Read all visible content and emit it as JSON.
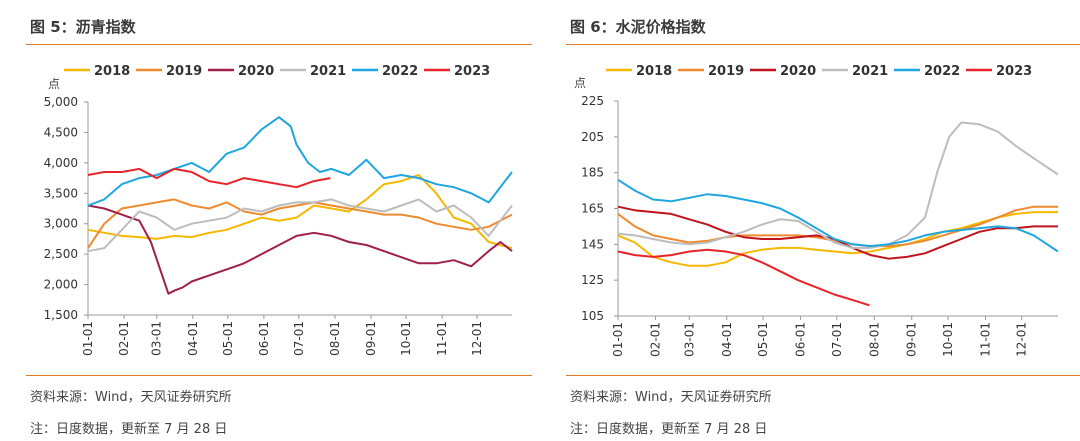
{
  "panels": [
    {
      "title": "图 5：沥青指数",
      "source": "资料来源：Wind，天风证券研究所",
      "note": "注：日度数据，更新至 7 月 28 日"
    },
    {
      "title": "图 6：水泥价格指数",
      "source": "资料来源：Wind，天风证券研究所",
      "note": "注：日度数据，更新至 7 月 28 日"
    }
  ],
  "chart_data": [
    {
      "type": "line",
      "title": "",
      "ylabel": "点",
      "xlabel": "",
      "ylim": [
        1500,
        5000
      ],
      "yticks": [
        1500,
        2000,
        2500,
        3000,
        3500,
        4000,
        4500,
        5000
      ],
      "ytick_labels": [
        "1,500",
        "2,000",
        "2,500",
        "3,000",
        "3,500",
        "4,000",
        "4,500",
        "5,000"
      ],
      "xticks": [
        "01-01",
        "02-01",
        "03-01",
        "04-01",
        "05-01",
        "06-01",
        "07-01",
        "08-01",
        "09-01",
        "10-01",
        "11-01",
        "12-01"
      ],
      "legend_position": "top",
      "grid": false,
      "series": [
        {
          "name": "2018",
          "color": "#f5b800",
          "x": [
            1,
            15,
            30,
            45,
            60,
            75,
            90,
            105,
            120,
            135,
            150,
            165,
            180,
            195,
            210,
            225,
            240,
            255,
            270,
            285,
            300,
            315,
            330,
            345,
            365
          ],
          "values": [
            2900,
            2850,
            2800,
            2780,
            2750,
            2800,
            2780,
            2850,
            2900,
            3000,
            3100,
            3050,
            3100,
            3300,
            3250,
            3200,
            3400,
            3650,
            3700,
            3800,
            3500,
            3100,
            3000,
            2700,
            2600
          ]
        },
        {
          "name": "2019",
          "color": "#ee8a30",
          "x": [
            1,
            15,
            30,
            45,
            60,
            75,
            90,
            105,
            120,
            135,
            150,
            165,
            180,
            195,
            210,
            225,
            240,
            255,
            270,
            285,
            300,
            315,
            330,
            345,
            365
          ],
          "values": [
            2600,
            3000,
            3250,
            3300,
            3350,
            3400,
            3300,
            3250,
            3350,
            3200,
            3150,
            3250,
            3300,
            3350,
            3300,
            3250,
            3200,
            3150,
            3150,
            3100,
            3000,
            2950,
            2900,
            2950,
            3150
          ]
        },
        {
          "name": "2020",
          "color": "#a0204a",
          "x": [
            1,
            15,
            30,
            45,
            55,
            62,
            70,
            75,
            82,
            90,
            105,
            120,
            135,
            150,
            165,
            180,
            195,
            210,
            225,
            240,
            255,
            270,
            285,
            300,
            315,
            330,
            345,
            355,
            365
          ],
          "values": [
            3300,
            3250,
            3150,
            3050,
            2700,
            2300,
            1850,
            1900,
            1950,
            2050,
            2150,
            2250,
            2350,
            2500,
            2650,
            2800,
            2850,
            2800,
            2700,
            2650,
            2550,
            2450,
            2350,
            2350,
            2400,
            2300,
            2550,
            2700,
            2550
          ]
        },
        {
          "name": "2021",
          "color": "#bdbdbd",
          "x": [
            1,
            15,
            30,
            45,
            60,
            75,
            90,
            105,
            120,
            135,
            150,
            165,
            180,
            195,
            210,
            225,
            240,
            255,
            270,
            285,
            300,
            315,
            330,
            345,
            365
          ],
          "values": [
            2550,
            2600,
            2900,
            3200,
            3100,
            2900,
            3000,
            3050,
            3100,
            3250,
            3200,
            3300,
            3350,
            3350,
            3400,
            3300,
            3250,
            3200,
            3300,
            3400,
            3200,
            3300,
            3100,
            2800,
            3300
          ]
        },
        {
          "name": "2022",
          "color": "#1ea6e0",
          "x": [
            1,
            15,
            30,
            45,
            60,
            75,
            90,
            105,
            120,
            135,
            150,
            165,
            175,
            180,
            190,
            200,
            210,
            225,
            240,
            255,
            270,
            285,
            300,
            315,
            330,
            345,
            365
          ],
          "values": [
            3300,
            3400,
            3650,
            3750,
            3800,
            3900,
            4000,
            3850,
            4150,
            4250,
            4550,
            4750,
            4600,
            4300,
            4000,
            3850,
            3900,
            3800,
            4050,
            3750,
            3800,
            3750,
            3650,
            3600,
            3500,
            3350,
            3850
          ]
        },
        {
          "name": "2023",
          "color": "#e8232a",
          "x": [
            1,
            15,
            30,
            45,
            60,
            75,
            90,
            105,
            120,
            135,
            150,
            165,
            180,
            195,
            209
          ],
          "values": [
            3800,
            3850,
            3850,
            3900,
            3750,
            3900,
            3850,
            3700,
            3650,
            3750,
            3700,
            3650,
            3600,
            3700,
            3750
          ]
        }
      ]
    },
    {
      "type": "line",
      "title": "",
      "ylabel": "点",
      "xlabel": "",
      "ylim": [
        105,
        225
      ],
      "yticks": [
        105,
        125,
        145,
        165,
        185,
        205,
        225
      ],
      "ytick_labels": [
        "105",
        "125",
        "145",
        "165",
        "185",
        "205",
        "225"
      ],
      "xticks": [
        "01-01",
        "02-01",
        "03-01",
        "04-01",
        "05-01",
        "06-01",
        "07-01",
        "08-01",
        "09-01",
        "10-01",
        "11-01",
        "12-01"
      ],
      "legend_position": "top",
      "grid": false,
      "series": [
        {
          "name": "2018",
          "color": "#f5b800",
          "x": [
            1,
            15,
            30,
            45,
            60,
            75,
            90,
            105,
            120,
            135,
            150,
            165,
            180,
            195,
            210,
            225,
            240,
            255,
            270,
            285,
            300,
            315,
            330,
            345,
            365
          ],
          "values": [
            150,
            146,
            138,
            135,
            133,
            133,
            135,
            140,
            142,
            143,
            143,
            142,
            141,
            140,
            141,
            143,
            145,
            148,
            152,
            154,
            157,
            160,
            162,
            163,
            163
          ]
        },
        {
          "name": "2019",
          "color": "#ee8a30",
          "x": [
            1,
            15,
            30,
            45,
            60,
            75,
            90,
            105,
            120,
            135,
            150,
            165,
            180,
            195,
            210,
            225,
            240,
            255,
            270,
            285,
            300,
            315,
            330,
            345,
            365
          ],
          "values": [
            162,
            155,
            150,
            148,
            146,
            147,
            149,
            150,
            150,
            150,
            150,
            149,
            147,
            145,
            144,
            144,
            145,
            147,
            150,
            153,
            156,
            160,
            164,
            166,
            166
          ]
        },
        {
          "name": "2020",
          "color": "#c0141c",
          "x": [
            1,
            15,
            30,
            45,
            60,
            75,
            90,
            105,
            120,
            135,
            150,
            165,
            180,
            195,
            210,
            225,
            240,
            255,
            270,
            285,
            300,
            315,
            330,
            345,
            365
          ],
          "values": [
            166,
            164,
            163,
            162,
            159,
            156,
            152,
            149,
            148,
            148,
            149,
            150,
            148,
            143,
            139,
            137,
            138,
            140,
            144,
            148,
            152,
            154,
            154,
            155,
            155
          ]
        },
        {
          "name": "2021",
          "color": "#bdbdbd",
          "x": [
            1,
            15,
            30,
            45,
            60,
            75,
            90,
            105,
            120,
            135,
            150,
            165,
            180,
            195,
            210,
            225,
            240,
            255,
            265,
            275,
            285,
            300,
            315,
            330,
            345,
            365
          ],
          "values": [
            151,
            150,
            148,
            146,
            145,
            146,
            149,
            152,
            156,
            159,
            158,
            152,
            146,
            143,
            143,
            145,
            150,
            160,
            185,
            205,
            213,
            212,
            208,
            200,
            193,
            184
          ]
        },
        {
          "name": "2022",
          "color": "#1ea6e0",
          "x": [
            1,
            15,
            30,
            45,
            60,
            75,
            90,
            105,
            120,
            135,
            150,
            165,
            180,
            195,
            210,
            225,
            240,
            255,
            270,
            285,
            300,
            315,
            330,
            345,
            365
          ],
          "values": [
            181,
            175,
            170,
            169,
            171,
            173,
            172,
            170,
            168,
            165,
            160,
            154,
            148,
            145,
            144,
            145,
            147,
            150,
            152,
            153,
            154,
            155,
            154,
            150,
            141
          ]
        },
        {
          "name": "2023",
          "color": "#e8232a",
          "x": [
            1,
            15,
            30,
            45,
            60,
            75,
            90,
            105,
            120,
            135,
            150,
            165,
            180,
            195,
            209
          ],
          "values": [
            141,
            139,
            138,
            139,
            141,
            142,
            141,
            139,
            135,
            130,
            125,
            121,
            117,
            114,
            111
          ]
        }
      ]
    }
  ]
}
